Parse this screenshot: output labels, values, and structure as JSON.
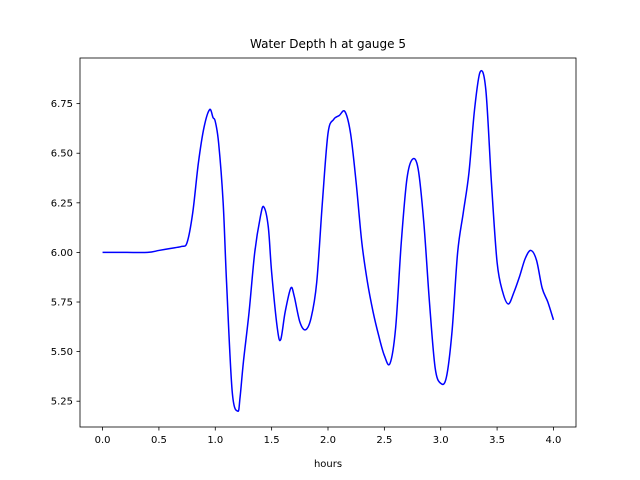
{
  "chart_data": {
    "type": "line",
    "title": "Water Depth h at gauge 5",
    "xlabel": "hours",
    "ylabel": "",
    "xlim": [
      -0.2,
      4.2
    ],
    "ylim": [
      5.12,
      6.98
    ],
    "grid": false,
    "x_ticks": [
      0.0,
      0.5,
      1.0,
      1.5,
      2.0,
      2.5,
      3.0,
      3.5,
      4.0
    ],
    "x_tick_labels": [
      "0.0",
      "0.5",
      "1.0",
      "1.5",
      "2.0",
      "2.5",
      "3.0",
      "3.5",
      "4.0"
    ],
    "y_ticks": [
      5.25,
      5.5,
      5.75,
      6.0,
      6.25,
      6.5,
      6.75
    ],
    "y_tick_labels": [
      "5.25",
      "5.50",
      "5.75",
      "6.00",
      "6.25",
      "6.50",
      "6.75"
    ],
    "series": [
      {
        "color": "#0000ff",
        "x": [
          0.0,
          0.2,
          0.4,
          0.5,
          0.6,
          0.7,
          0.75,
          0.8,
          0.85,
          0.9,
          0.95,
          0.98,
          1.0,
          1.03,
          1.07,
          1.1,
          1.15,
          1.2,
          1.22,
          1.25,
          1.3,
          1.35,
          1.4,
          1.43,
          1.47,
          1.5,
          1.55,
          1.58,
          1.62,
          1.67,
          1.7,
          1.75,
          1.8,
          1.85,
          1.9,
          1.95,
          2.0,
          2.05,
          2.1,
          2.15,
          2.2,
          2.25,
          2.3,
          2.35,
          2.4,
          2.45,
          2.5,
          2.55,
          2.6,
          2.65,
          2.7,
          2.75,
          2.8,
          2.85,
          2.9,
          2.95,
          3.0,
          3.05,
          3.1,
          3.15,
          3.2,
          3.25,
          3.3,
          3.35,
          3.4,
          3.45,
          3.5,
          3.55,
          3.6,
          3.65,
          3.7,
          3.75,
          3.8,
          3.85,
          3.9,
          3.95,
          4.0
        ],
        "y": [
          6.0,
          6.0,
          6.0,
          6.01,
          6.02,
          6.03,
          6.05,
          6.2,
          6.45,
          6.63,
          6.72,
          6.68,
          6.66,
          6.55,
          6.25,
          5.85,
          5.3,
          5.2,
          5.27,
          5.45,
          5.7,
          6.0,
          6.18,
          6.23,
          6.13,
          5.9,
          5.62,
          5.56,
          5.7,
          5.82,
          5.78,
          5.65,
          5.61,
          5.67,
          5.85,
          6.25,
          6.6,
          6.67,
          6.69,
          6.71,
          6.6,
          6.35,
          6.05,
          5.85,
          5.7,
          5.58,
          5.48,
          5.44,
          5.62,
          6.05,
          6.37,
          6.47,
          6.42,
          6.15,
          5.75,
          5.42,
          5.34,
          5.37,
          5.6,
          6.0,
          6.2,
          6.4,
          6.72,
          6.91,
          6.82,
          6.35,
          5.95,
          5.8,
          5.74,
          5.8,
          5.88,
          5.97,
          6.01,
          5.96,
          5.82,
          5.75,
          5.66
        ]
      }
    ]
  }
}
